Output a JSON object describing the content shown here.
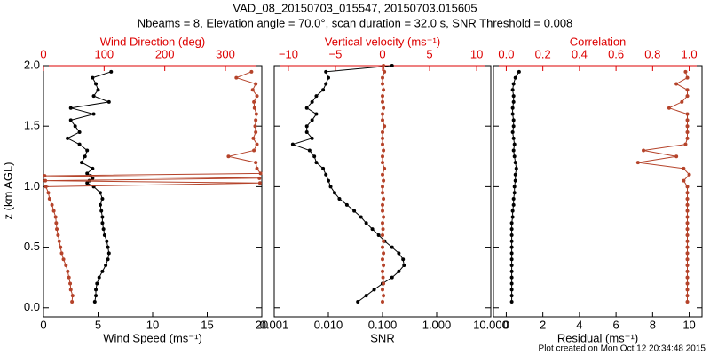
{
  "title": "VAD_08_20150703_015547, 20150703.015605",
  "subtitle": "Nbeams = 8, Elevation angle = 70.0°, scan duration = 32.0 s, SNR Threshold = 0.008",
  "footer": "Plot created on Mon Oct 12 20:34:48 2015",
  "chart_data": [
    {
      "type": "scatter",
      "ylabel": "z (km AGL)",
      "show_ytick_labels": true,
      "xlabel": "Wind Speed (ms⁻¹)",
      "xlim": [
        0,
        20
      ],
      "xticks": [
        0,
        5,
        10,
        15,
        20
      ],
      "x2label": "Wind Direction (deg)",
      "x2lim": [
        0,
        360
      ],
      "x2ticks": [
        0,
        100,
        200,
        300
      ],
      "ylim": [
        -0.075,
        2
      ],
      "yticks": [
        {
          "value": 0,
          "label": "0.0"
        },
        0.5,
        {
          "value": 1,
          "label": "1.0"
        },
        1.5,
        {
          "value": 2,
          "label": "2.0"
        }
      ],
      "y": [
        0.05,
        0.1,
        0.15,
        0.2,
        0.25,
        0.3,
        0.35,
        0.4,
        0.45,
        0.5,
        0.55,
        0.6,
        0.65,
        0.7,
        0.75,
        0.8,
        0.85,
        0.9,
        0.95,
        1.0,
        1.03,
        1.05,
        1.07,
        1.09,
        1.11,
        1.15,
        1.2,
        1.25,
        1.3,
        1.35,
        1.4,
        1.45,
        1.5,
        1.55,
        1.6,
        1.65,
        1.7,
        1.75,
        1.8,
        1.85,
        1.9,
        1.95
      ],
      "series": [
        {
          "color": "#000000",
          "axis": "x",
          "values": [
            4.7,
            4.8,
            4.8,
            4.9,
            5.1,
            5.4,
            5.7,
            5.9,
            6.0,
            5.9,
            5.8,
            5.6,
            5.5,
            5.4,
            5.4,
            5.3,
            5.2,
            5.4,
            5.2,
            4.6,
            4.0,
            4.2,
            4.5,
            4.3,
            4.0,
            4.5,
            3.5,
            3.8,
            4.0,
            3.3,
            2.2,
            3.3,
            2.9,
            2.5,
            4.6,
            2.5,
            6.0,
            4.6,
            5.0,
            4.8,
            4.5,
            6.2
          ]
        },
        {
          "color": "#b5432a",
          "axis": "x2",
          "values": [
            47,
            48,
            45,
            44,
            42,
            40,
            37,
            33,
            30,
            28,
            26,
            24,
            22,
            21,
            20,
            17,
            14,
            10,
            8,
            4,
            357,
            3,
            356,
            2,
            358,
            352,
            350,
            305,
            347,
            352,
            346,
            350,
            349,
            350,
            351,
            348,
            347,
            352,
            345,
            350,
            318,
            343
          ]
        }
      ]
    },
    {
      "type": "scatter",
      "show_ytick_labels": false,
      "xlabel": "SNR",
      "xlog": true,
      "xlim": [
        0.001,
        10
      ],
      "xticks": [
        0.001,
        {
          "value": 0.01,
          "label": "0.010"
        },
        {
          "value": 0.1,
          "label": "0.100"
        },
        {
          "value": 1,
          "label": "1.000"
        },
        {
          "value": 10,
          "label": "10.000"
        }
      ],
      "x2label": "Vertical velocity (ms⁻¹)",
      "x2lim": [
        -11.5,
        11.5
      ],
      "x2ticks": [
        {
          "value": -10,
          "label": "−10"
        },
        {
          "value": -5,
          "label": "−5"
        },
        0,
        5,
        10
      ],
      "ylim": [
        -0.075,
        2
      ],
      "yticks": [
        0,
        0.5,
        1,
        1.5,
        2
      ],
      "y": [
        0.05,
        0.1,
        0.15,
        0.2,
        0.25,
        0.3,
        0.35,
        0.4,
        0.45,
        0.5,
        0.55,
        0.6,
        0.65,
        0.7,
        0.75,
        0.8,
        0.85,
        0.9,
        0.95,
        1.0,
        1.05,
        1.1,
        1.15,
        1.2,
        1.25,
        1.3,
        1.35,
        1.4,
        1.45,
        1.5,
        1.55,
        1.6,
        1.65,
        1.7,
        1.75,
        1.8,
        1.85,
        1.9,
        1.95,
        2.0
      ],
      "series": [
        {
          "color": "#000000",
          "axis": "x",
          "values": [
            0.035,
            0.05,
            0.07,
            0.1,
            0.15,
            0.2,
            0.25,
            0.24,
            0.2,
            0.15,
            0.11,
            0.085,
            0.065,
            0.05,
            0.04,
            0.03,
            0.022,
            0.016,
            0.013,
            0.011,
            0.01,
            0.009,
            0.008,
            0.006,
            0.0055,
            0.0045,
            0.0022,
            0.005,
            0.004,
            0.004,
            0.005,
            0.006,
            0.004,
            0.005,
            0.006,
            0.008,
            0.009,
            0.01,
            0.009,
            0.15
          ]
        },
        {
          "color": "#b5432a",
          "axis": "x2",
          "values": [
            0,
            0.1,
            0,
            0.1,
            0.05,
            0,
            0.1,
            0,
            0.1,
            0,
            0.1,
            0,
            0.05,
            0,
            0.1,
            0,
            0,
            0.1,
            0,
            0,
            0.1,
            0,
            0.2,
            0,
            0,
            0.1,
            0,
            0,
            0,
            0.2,
            0,
            0,
            0.1,
            0,
            0,
            0.1,
            0,
            0,
            0.2,
            0.1
          ]
        }
      ]
    },
    {
      "type": "scatter",
      "show_ytick_labels": false,
      "xlabel": "Residual (ms⁻¹)",
      "xlim": [
        -0.7,
        10.7
      ],
      "xticks": [
        0,
        2,
        4,
        6,
        8,
        10
      ],
      "x2label": "Correlation",
      "x2lim": [
        -0.07,
        1.07
      ],
      "x2ticks": [
        {
          "value": 0,
          "label": "0.0"
        },
        0.2,
        0.4,
        0.6,
        0.8,
        {
          "value": 1,
          "label": "1.0"
        }
      ],
      "ylim": [
        -0.075,
        2
      ],
      "yticks": [
        0,
        0.5,
        1,
        1.5,
        2
      ],
      "y": [
        0.05,
        0.1,
        0.15,
        0.2,
        0.25,
        0.3,
        0.35,
        0.4,
        0.45,
        0.5,
        0.55,
        0.6,
        0.65,
        0.7,
        0.75,
        0.8,
        0.85,
        0.9,
        0.95,
        1.0,
        1.05,
        1.1,
        1.15,
        1.2,
        1.25,
        1.3,
        1.35,
        1.4,
        1.45,
        1.5,
        1.55,
        1.6,
        1.65,
        1.7,
        1.75,
        1.8,
        1.85,
        1.9,
        1.95
      ],
      "series": [
        {
          "color": "#000000",
          "axis": "x",
          "values": [
            0.3,
            0.3,
            0.3,
            0.3,
            0.3,
            0.3,
            0.3,
            0.3,
            0.3,
            0.3,
            0.3,
            0.3,
            0.3,
            0.3,
            0.35,
            0.35,
            0.4,
            0.4,
            0.45,
            0.45,
            0.5,
            0.5,
            0.55,
            0.5,
            0.45,
            0.4,
            0.45,
            0.4,
            0.35,
            0.4,
            0.4,
            0.35,
            0.35,
            0.4,
            0.4,
            0.35,
            0.4,
            0.5,
            0.7
          ]
        },
        {
          "color": "#b5432a",
          "axis": "x2",
          "values": [
            0.99,
            0.99,
            0.99,
            0.99,
            0.99,
            0.99,
            0.99,
            0.99,
            0.99,
            0.99,
            0.99,
            0.99,
            0.99,
            0.99,
            0.99,
            0.99,
            0.99,
            0.99,
            0.99,
            0.99,
            0.97,
            1.0,
            0.97,
            0.72,
            0.93,
            0.75,
            0.98,
            0.99,
            0.99,
            0.99,
            0.99,
            0.99,
            0.89,
            0.96,
            0.99,
            0.99,
            0.93,
            0.99,
            0.98
          ]
        }
      ]
    }
  ]
}
